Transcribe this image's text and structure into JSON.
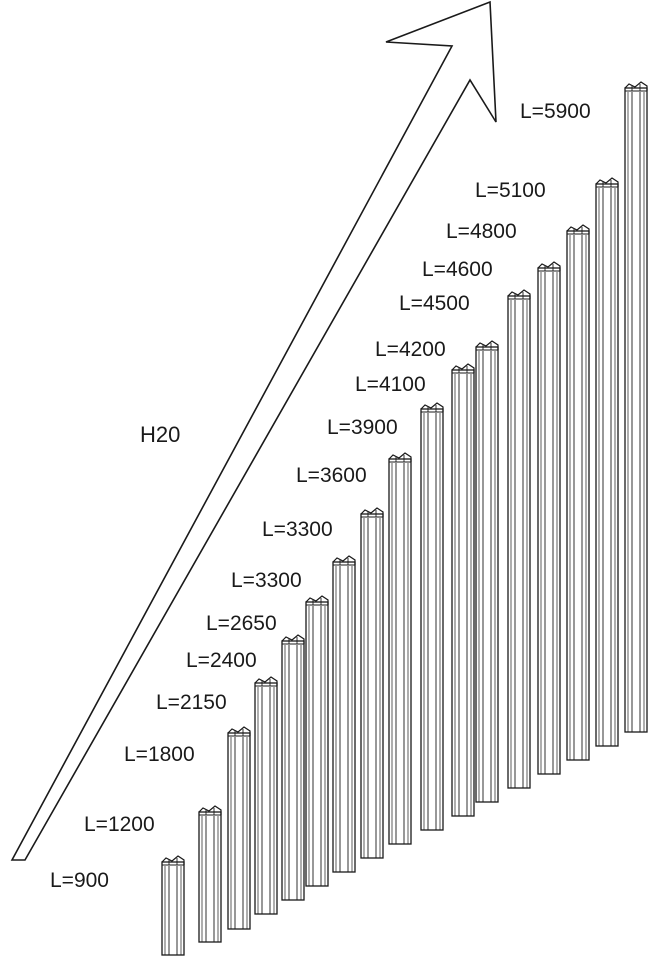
{
  "series_label": "H20",
  "colors": {
    "line": "#1a1a1a",
    "background": "#ffffff"
  },
  "beams": [
    {
      "label": "L=900"
    },
    {
      "label": "L=1200"
    },
    {
      "label": "L=1800"
    },
    {
      "label": "L=2150"
    },
    {
      "label": "L=2400"
    },
    {
      "label": "L=2650"
    },
    {
      "label": "L=3300"
    },
    {
      "label": "L=3300"
    },
    {
      "label": "L=3600"
    },
    {
      "label": "L=3900"
    },
    {
      "label": "L=4100"
    },
    {
      "label": "L=4200"
    },
    {
      "label": "L=4500"
    },
    {
      "label": "L=4600"
    },
    {
      "label": "L=4800"
    },
    {
      "label": "L=5100"
    },
    {
      "label": "L=5900"
    }
  ]
}
